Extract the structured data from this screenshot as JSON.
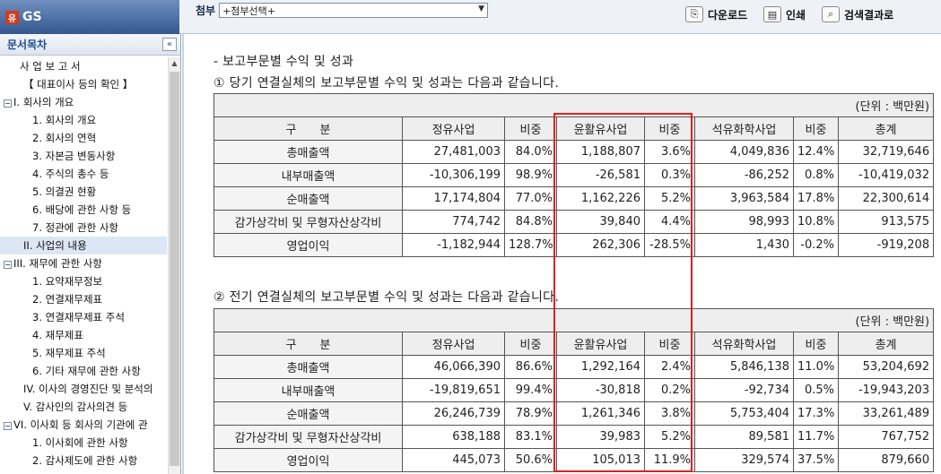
{
  "brand": {
    "logo": "유",
    "title": "GS"
  },
  "toolbar": {
    "attach_label": "첨부",
    "attach_select": "+첨부선택+",
    "download": "다운로드",
    "print": "인쇄",
    "search_results": "검색결과로"
  },
  "sidebar": {
    "header": "문서목차",
    "collapse_glyph": "«",
    "items": [
      {
        "label": "사 업 보 고 서",
        "indent": 1,
        "toggle": ""
      },
      {
        "label": "【 대표이사 등의 확인 】",
        "indent": 2,
        "toggle": ""
      },
      {
        "label": "I. 회사의 개요",
        "indent": 0,
        "toggle": "−"
      },
      {
        "label": "1. 회사의 개요",
        "indent": 3,
        "toggle": ""
      },
      {
        "label": "2. 회사의 연혁",
        "indent": 3,
        "toggle": ""
      },
      {
        "label": "3. 자본금 변동사항",
        "indent": 3,
        "toggle": ""
      },
      {
        "label": "4. 주식의 총수 등",
        "indent": 3,
        "toggle": ""
      },
      {
        "label": "5. 의결권 현황",
        "indent": 3,
        "toggle": ""
      },
      {
        "label": "6. 배당에 관한 사항 등",
        "indent": 3,
        "toggle": ""
      },
      {
        "label": "7. 정관에 관한 사항",
        "indent": 3,
        "toggle": ""
      },
      {
        "label": "II. 사업의 내용",
        "indent": 2,
        "toggle": "",
        "selected": true
      },
      {
        "label": "III. 재무에 관한 사항",
        "indent": 0,
        "toggle": "−"
      },
      {
        "label": "1. 요약재무정보",
        "indent": 3,
        "toggle": ""
      },
      {
        "label": "2. 연결재무제표",
        "indent": 3,
        "toggle": ""
      },
      {
        "label": "3. 연결재무제표 주석",
        "indent": 3,
        "toggle": ""
      },
      {
        "label": "4. 재무제표",
        "indent": 3,
        "toggle": ""
      },
      {
        "label": "5. 재무제표 주석",
        "indent": 3,
        "toggle": ""
      },
      {
        "label": "6. 기타 재무에 관한 사항",
        "indent": 3,
        "toggle": ""
      },
      {
        "label": "IV. 이사의 경영진단 및 분석의",
        "indent": 2,
        "toggle": ""
      },
      {
        "label": "V. 감사인의 감사의견 등",
        "indent": 2,
        "toggle": ""
      },
      {
        "label": "VI. 이사회 등 회사의 기관에 관",
        "indent": 0,
        "toggle": "−"
      },
      {
        "label": "1. 이사회에 관한 사항",
        "indent": 3,
        "toggle": ""
      },
      {
        "label": "2. 감사제도에 관한 사항",
        "indent": 3,
        "toggle": ""
      }
    ]
  },
  "doc": {
    "section_title": "- 보고부문별 수익 및 성과",
    "caption1": "① 당기 연결실체의 보고부문별 수익 및 성과는 다음과 같습니다.",
    "caption2": "② 전기 연결실체의 보고부문별 수익 및 성과는 다음과 같습니다.",
    "unit": "(단위 : 백만원)",
    "headers": [
      "구　　분",
      "정유사업",
      "비중",
      "윤활유사업",
      "비중",
      "석유화학사업",
      "비중",
      "총계"
    ],
    "table1": [
      [
        "총매출액",
        "27,481,003",
        "84.0%",
        "1,188,807",
        "3.6%",
        "4,049,836",
        "12.4%",
        "32,719,646"
      ],
      [
        "내부매출액",
        "-10,306,199",
        "98.9%",
        "-26,581",
        "0.3%",
        "-86,252",
        "0.8%",
        "-10,419,032"
      ],
      [
        "순매출액",
        "17,174,804",
        "77.0%",
        "1,162,226",
        "5.2%",
        "3,963,584",
        "17.8%",
        "22,300,614"
      ],
      [
        "감가상각비 및 무형자산상각비",
        "774,742",
        "84.8%",
        "39,840",
        "4.4%",
        "98,993",
        "10.8%",
        "913,575"
      ],
      [
        "영업이익",
        "-1,182,944",
        "128.7%",
        "262,306",
        "-28.5%",
        "1,430",
        "-0.2%",
        "-919,208"
      ]
    ],
    "table2": [
      [
        "총매출액",
        "46,066,390",
        "86.6%",
        "1,292,164",
        "2.4%",
        "5,846,138",
        "11.0%",
        "53,204,692"
      ],
      [
        "내부매출액",
        "-19,819,651",
        "99.4%",
        "-30,818",
        "0.2%",
        "-92,734",
        "0.5%",
        "-19,943,203"
      ],
      [
        "순매출액",
        "26,246,739",
        "78.9%",
        "1,261,346",
        "3.8%",
        "5,753,404",
        "17.3%",
        "33,261,489"
      ],
      [
        "감가상각비 및 무형자산상각비",
        "638,188",
        "83.1%",
        "39,983",
        "5.2%",
        "89,581",
        "11.7%",
        "767,752"
      ],
      [
        "영업이익",
        "445,073",
        "50.6%",
        "105,013",
        "11.9%",
        "329,574",
        "37.5%",
        "879,660"
      ]
    ]
  },
  "colors": {
    "highlight": "#e02020",
    "brand_bar": "#34588f",
    "sidebar_header_text": "#1d4a8f"
  }
}
